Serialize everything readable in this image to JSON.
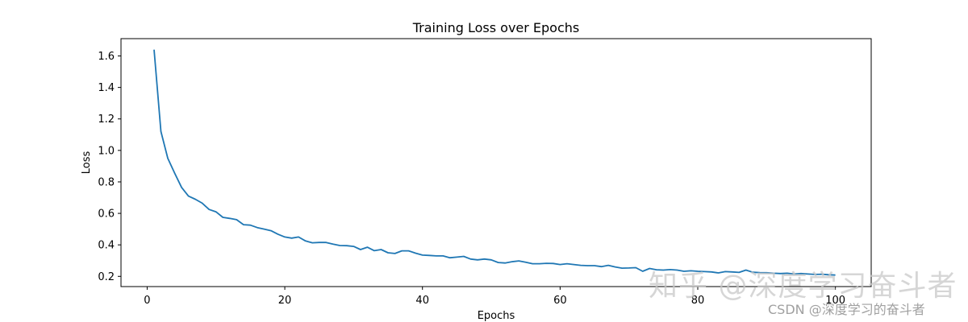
{
  "chart_data": {
    "type": "line",
    "title": "Training Loss over Epochs",
    "xlabel": "Epochs",
    "ylabel": "Loss",
    "xlim": [
      -3.8,
      105.2
    ],
    "ylim": [
      0.135,
      1.71
    ],
    "xticks": [
      0,
      20,
      40,
      60,
      80,
      100
    ],
    "yticks": [
      0.2,
      0.4,
      0.6,
      0.8,
      1.0,
      1.2,
      1.4,
      1.6
    ],
    "grid": false,
    "legend": null,
    "series": [
      {
        "name": "Training Loss",
        "color": "#1f77b4",
        "x": [
          1,
          2,
          3,
          4,
          5,
          6,
          7,
          8,
          9,
          10,
          11,
          12,
          13,
          14,
          15,
          16,
          17,
          18,
          19,
          20,
          21,
          22,
          23,
          24,
          25,
          26,
          27,
          28,
          29,
          30,
          31,
          32,
          33,
          34,
          35,
          36,
          37,
          38,
          39,
          40,
          41,
          42,
          43,
          44,
          45,
          46,
          47,
          48,
          49,
          50,
          51,
          52,
          53,
          54,
          55,
          56,
          57,
          58,
          59,
          60,
          61,
          62,
          63,
          64,
          65,
          66,
          67,
          68,
          69,
          70,
          71,
          72,
          73,
          74,
          75,
          76,
          77,
          78,
          79,
          80,
          81,
          82,
          83,
          84,
          85,
          86,
          87,
          88,
          89,
          90,
          91,
          92,
          93,
          94,
          95,
          96,
          97,
          98,
          99,
          100
        ],
        "values": [
          1.64,
          1.12,
          0.95,
          0.855,
          0.765,
          0.71,
          0.69,
          0.665,
          0.625,
          0.61,
          0.575,
          0.568,
          0.56,
          0.528,
          0.525,
          0.51,
          0.5,
          0.49,
          0.468,
          0.45,
          0.443,
          0.45,
          0.425,
          0.413,
          0.415,
          0.415,
          0.405,
          0.396,
          0.395,
          0.39,
          0.37,
          0.385,
          0.363,
          0.37,
          0.35,
          0.345,
          0.362,
          0.362,
          0.347,
          0.335,
          0.333,
          0.33,
          0.33,
          0.318,
          0.322,
          0.327,
          0.31,
          0.305,
          0.31,
          0.305,
          0.288,
          0.285,
          0.293,
          0.298,
          0.29,
          0.28,
          0.28,
          0.283,
          0.282,
          0.275,
          0.28,
          0.275,
          0.27,
          0.268,
          0.268,
          0.262,
          0.27,
          0.26,
          0.252,
          0.253,
          0.255,
          0.232,
          0.25,
          0.242,
          0.24,
          0.243,
          0.24,
          0.232,
          0.235,
          0.232,
          0.23,
          0.228,
          0.222,
          0.23,
          0.228,
          0.225,
          0.24,
          0.226,
          0.224,
          0.223,
          0.22,
          0.218,
          0.22,
          0.215,
          0.218,
          0.215,
          0.212,
          0.213,
          0.21,
          0.208
        ]
      }
    ]
  },
  "watermarks": {
    "zhihu": "知乎 @深度学习奋斗者",
    "csdn": "CSDN @深度学习的奋斗者"
  }
}
